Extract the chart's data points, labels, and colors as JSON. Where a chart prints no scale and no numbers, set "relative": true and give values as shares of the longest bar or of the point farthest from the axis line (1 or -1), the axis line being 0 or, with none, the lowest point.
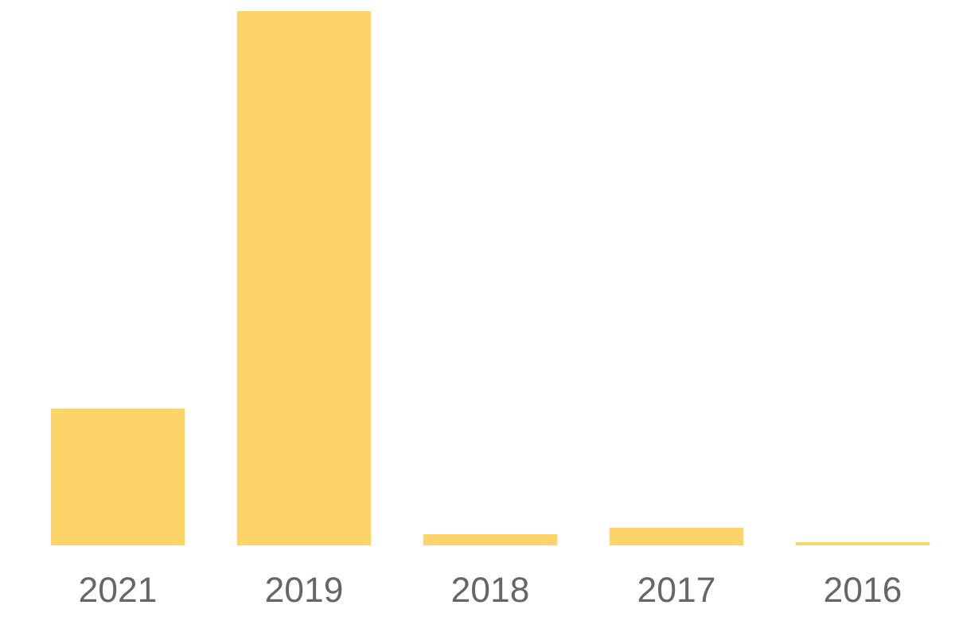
{
  "chart_data": {
    "type": "bar",
    "relative": true,
    "categories": [
      "2021",
      "2019",
      "2018",
      "2017",
      "2016"
    ],
    "values": [
      0.256,
      1,
      0.021,
      0.033,
      0.006
    ],
    "color": "#fdd46a",
    "grid": false,
    "legend": false
  }
}
